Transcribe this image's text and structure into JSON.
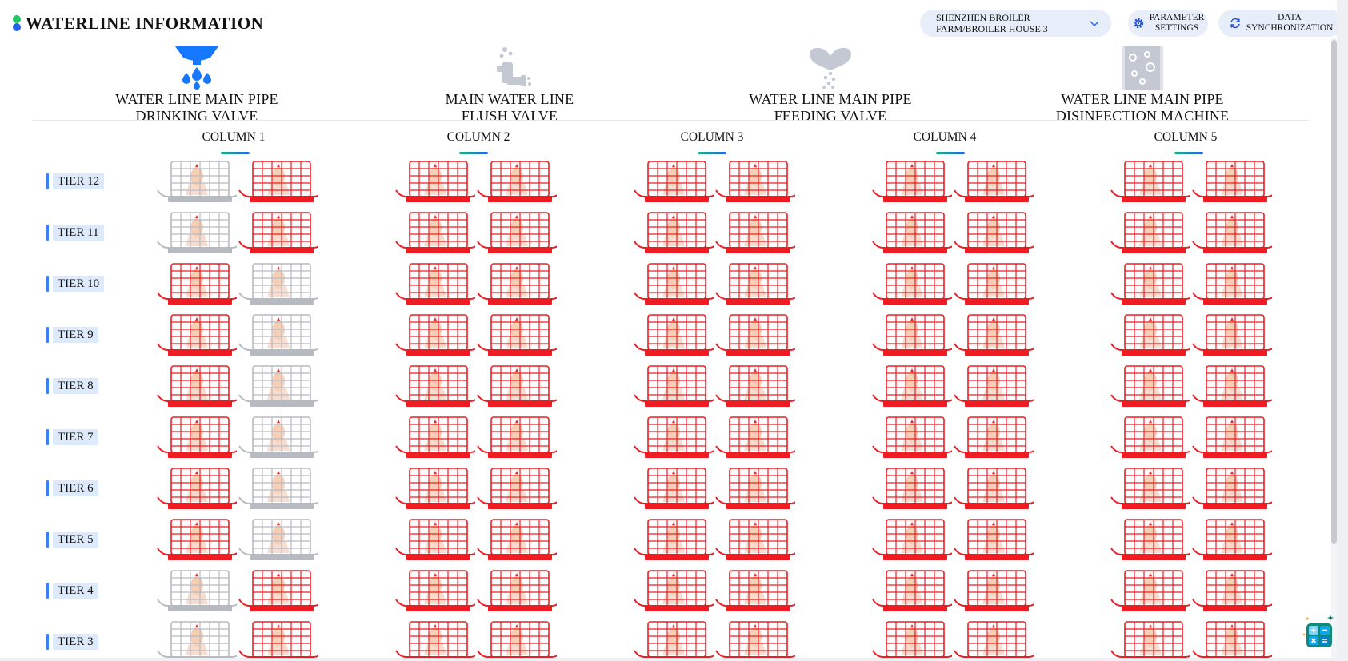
{
  "header": {
    "title": "WATERLINE INFORMATION",
    "location_select": {
      "line1": "SHENZHEN BROILER",
      "line2": "FARM/BROILER HOUSE 3",
      "icon": "chevron-down-icon"
    },
    "parameter_settings": {
      "line1": "PARAMETER",
      "line2": "SETTINGS",
      "icon": "gear-icon"
    },
    "data_sync": {
      "line1": "DATA",
      "line2": "SYNCHRONIZATION",
      "icon": "sync-icon"
    }
  },
  "valves": [
    {
      "line1": "WATER LINE MAIN PIPE",
      "line2": "DRINKING VALVE",
      "icon": "drinking-valve-icon",
      "status": "active",
      "color": "#1677ff"
    },
    {
      "line1": "MAIN WATER LINE",
      "line2": "FLUSH VALVE",
      "icon": "flush-valve-icon",
      "status": "inactive",
      "color": "#c3c8d3"
    },
    {
      "line1": "WATER LINE MAIN PIPE",
      "line2": "FEEDING VALVE",
      "icon": "feeding-valve-icon",
      "status": "inactive",
      "color": "#c3c8d3"
    },
    {
      "line1": "WATER LINE MAIN PIPE",
      "line2": "DISINFECTION MACHINE",
      "icon": "disinfection-machine-icon",
      "status": "inactive",
      "color": "#c3c8d3"
    }
  ],
  "columns": [
    {
      "label": "COLUMN 1"
    },
    {
      "label": "COLUMN 2"
    },
    {
      "label": "COLUMN 3"
    },
    {
      "label": "COLUMN 4"
    },
    {
      "label": "COLUMN 5"
    }
  ],
  "tiers": [
    {
      "label": "TIER 12",
      "column1": [
        "gray",
        "red"
      ]
    },
    {
      "label": "TIER 11",
      "column1": [
        "gray",
        "red"
      ]
    },
    {
      "label": "TIER 10",
      "column1": [
        "red",
        "gray"
      ]
    },
    {
      "label": "TIER 9",
      "column1": [
        "red",
        "gray"
      ]
    },
    {
      "label": "TIER 8",
      "column1": [
        "red",
        "gray"
      ]
    },
    {
      "label": "TIER 7",
      "column1": [
        "red",
        "gray"
      ]
    },
    {
      "label": "TIER 6",
      "column1": [
        "red",
        "gray"
      ]
    },
    {
      "label": "TIER 5",
      "column1": [
        "red",
        "gray"
      ]
    },
    {
      "label": "TIER 4",
      "column1": [
        "gray",
        "red"
      ]
    },
    {
      "label": "TIER 3",
      "column1": [
        "gray",
        "red"
      ]
    }
  ],
  "cage_status_colors": {
    "red": "#ee1d23",
    "gray": "#b7bac1"
  },
  "other_columns_status": "red",
  "fab": {
    "icon": "calculator-icon"
  }
}
